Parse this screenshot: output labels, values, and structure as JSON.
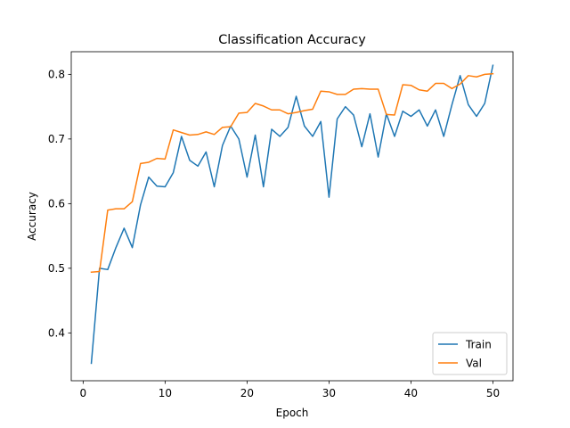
{
  "chart_data": {
    "type": "line",
    "title": "Classification Accuracy",
    "xlabel": "Epoch",
    "ylabel": "Accuracy",
    "xlim": [
      -1.45,
      52.45
    ],
    "ylim": [
      0.326,
      0.835
    ],
    "xticks": [
      0,
      10,
      20,
      30,
      40,
      50
    ],
    "yticks": [
      0.4,
      0.5,
      0.6,
      0.7,
      0.8
    ],
    "grid": false,
    "legend_position": "lower-right",
    "x": [
      1,
      2,
      3,
      4,
      5,
      6,
      7,
      8,
      9,
      10,
      11,
      12,
      13,
      14,
      15,
      16,
      17,
      18,
      19,
      20,
      21,
      22,
      23,
      24,
      25,
      26,
      27,
      28,
      29,
      30,
      31,
      32,
      33,
      34,
      35,
      36,
      37,
      38,
      39,
      40,
      41,
      42,
      43,
      44,
      45,
      46,
      47,
      48,
      49,
      50
    ],
    "series": [
      {
        "name": "Train",
        "color": "#1f77b4",
        "values": [
          0.353,
          0.5,
          0.498,
          0.532,
          0.562,
          0.532,
          0.598,
          0.641,
          0.627,
          0.626,
          0.648,
          0.704,
          0.667,
          0.658,
          0.68,
          0.626,
          0.69,
          0.72,
          0.7,
          0.641,
          0.706,
          0.626,
          0.715,
          0.704,
          0.718,
          0.766,
          0.72,
          0.704,
          0.727,
          0.61,
          0.731,
          0.75,
          0.737,
          0.688,
          0.739,
          0.672,
          0.739,
          0.704,
          0.743,
          0.735,
          0.745,
          0.72,
          0.745,
          0.704,
          0.753,
          0.798,
          0.753,
          0.735,
          0.755,
          0.814
        ]
      },
      {
        "name": "Val",
        "color": "#ff7f0e",
        "values": [
          0.494,
          0.495,
          0.59,
          0.592,
          0.592,
          0.603,
          0.662,
          0.664,
          0.67,
          0.669,
          0.714,
          0.71,
          0.706,
          0.707,
          0.711,
          0.707,
          0.718,
          0.719,
          0.74,
          0.741,
          0.755,
          0.751,
          0.745,
          0.745,
          0.739,
          0.741,
          0.744,
          0.746,
          0.774,
          0.773,
          0.769,
          0.769,
          0.777,
          0.778,
          0.777,
          0.777,
          0.738,
          0.737,
          0.784,
          0.783,
          0.776,
          0.774,
          0.786,
          0.786,
          0.778,
          0.785,
          0.798,
          0.796,
          0.8,
          0.801
        ]
      }
    ]
  }
}
